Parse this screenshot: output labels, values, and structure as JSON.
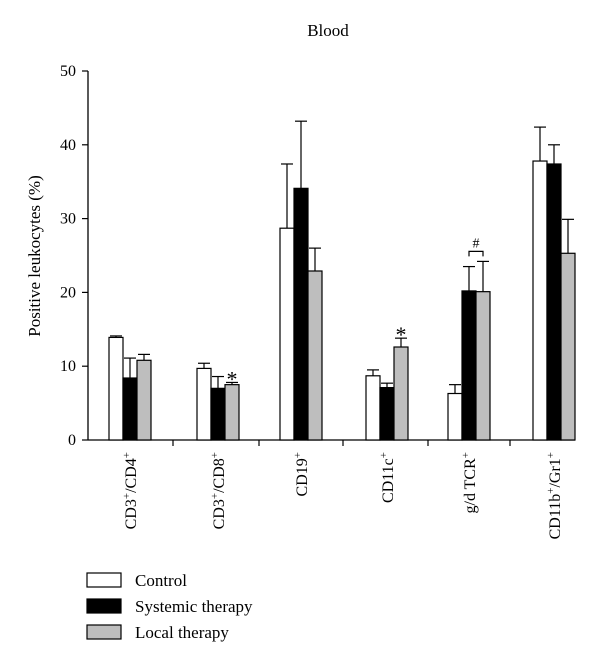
{
  "chart_data": {
    "type": "bar",
    "title": "Blood",
    "ylabel": "Positive leukocytes (%)",
    "xlabel": "",
    "ylim": [
      0,
      50
    ],
    "yticks": [
      0,
      10,
      20,
      30,
      40,
      50
    ],
    "categories": [
      {
        "base": "CD3",
        "sup": "+",
        "mid": "/CD4",
        "sup2": "+"
      },
      {
        "base": "CD3",
        "sup": "+",
        "mid": "/CD8",
        "sup2": "+"
      },
      {
        "base": "CD19",
        "sup": "+",
        "mid": "",
        "sup2": ""
      },
      {
        "base": "CD11c",
        "sup": "+",
        "mid": "",
        "sup2": ""
      },
      {
        "base": "g/d TCR",
        "sup": "+",
        "mid": "",
        "sup2": ""
      },
      {
        "base": "CD11b",
        "sup": "+",
        "mid": "/Gr1",
        "sup2": "+"
      }
    ],
    "series": [
      {
        "name": "Control",
        "color": "#ffffff",
        "values": [
          13.9,
          9.7,
          28.7,
          8.7,
          6.3,
          37.8
        ],
        "errors": [
          0.2,
          0.7,
          8.7,
          0.8,
          1.2,
          4.6
        ]
      },
      {
        "name": "Systemic therapy",
        "color": "#000000",
        "values": [
          8.4,
          7.0,
          34.1,
          7.1,
          20.2,
          37.4
        ],
        "errors": [
          2.7,
          1.6,
          9.1,
          0.6,
          3.3,
          2.6
        ]
      },
      {
        "name": "Local therapy",
        "color": "#bebebe",
        "values": [
          10.8,
          7.5,
          22.9,
          12.6,
          20.1,
          25.3
        ],
        "errors": [
          0.8,
          0.3,
          3.1,
          1.2,
          4.1,
          4.6
        ]
      }
    ],
    "annotations": [
      {
        "text": "*",
        "category": 1,
        "series": 2
      },
      {
        "text": "*",
        "category": 3,
        "series": 2
      },
      {
        "text": "#",
        "category": 4,
        "series": [
          1,
          2
        ],
        "bracket": true
      }
    ],
    "grid": false,
    "legend_position": "bottom-left"
  }
}
